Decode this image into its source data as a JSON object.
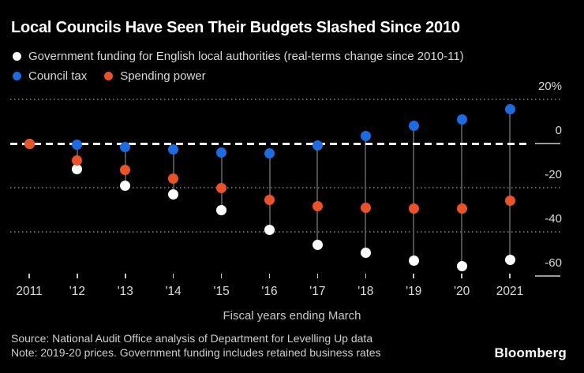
{
  "title": "Local Councils Have Seen Their Budgets Slashed Since 2010",
  "legend": {
    "items": [
      {
        "label": "Government funding for English local authorities (real-terms change since 2010-11)",
        "color": "#ffffff"
      },
      {
        "label": "Council tax",
        "color": "#1b6ce4"
      },
      {
        "label": "Spending power",
        "color": "#ee5126"
      }
    ]
  },
  "chart_data": {
    "type": "scatter",
    "categories": [
      "2011",
      "'12",
      "'13",
      "'14",
      "'15",
      "'16",
      "'17",
      "'18",
      "'19",
      "'20",
      "2021"
    ],
    "series": [
      {
        "name": "Government funding for English local authorities (real-terms change since 2010-11)",
        "color": "#ffffff",
        "values": [
          0,
          -11.5,
          -19,
          -23,
          -30,
          -39,
          -46,
          -49.5,
          -53,
          -55.5,
          -52.5
        ]
      },
      {
        "name": "Council tax",
        "color": "#1b6ce4",
        "values": [
          0,
          -0.5,
          -1.5,
          -2.5,
          -4,
          -4.5,
          -1,
          3.5,
          8,
          11,
          15.5
        ]
      },
      {
        "name": "Spending power",
        "color": "#ee5126",
        "values": [
          0,
          -7.5,
          -12,
          -16,
          -20,
          -25.5,
          -28.5,
          -29,
          -29.5,
          -29.5,
          -26
        ]
      }
    ],
    "xlabel": "Fiscal years ending March",
    "ylabel": "",
    "ylim": [
      -65,
      22
    ],
    "yticks": [
      {
        "value": 20,
        "label": "20%",
        "grid": "dotted",
        "underline": false
      },
      {
        "value": 0,
        "label": "0",
        "grid": "zero",
        "underline": true
      },
      {
        "value": -20,
        "label": "-20",
        "grid": "dotted",
        "underline": false
      },
      {
        "value": -40,
        "label": "-40",
        "grid": "dotted",
        "underline": false
      },
      {
        "value": -60,
        "label": "-60",
        "grid": "none",
        "underline": true
      }
    ],
    "legend_position": "top",
    "grid": "horizontal-dotted",
    "background": "#000000"
  },
  "footer": {
    "source": "Source: National Audit Office analysis of Department for Levelling Up data",
    "note": "Note: 2019-20 prices. Government funding includes retained business rates",
    "logo": "Bloomberg"
  }
}
